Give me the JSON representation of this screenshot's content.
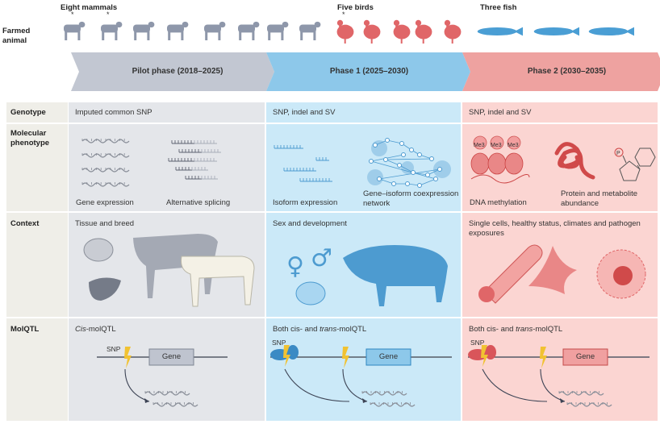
{
  "header": {
    "row_label": "Farmed animal",
    "groups": [
      {
        "label": "Eight mammals",
        "icons": [
          "cattle-icon",
          "pig-icon",
          "goat-icon",
          "sheep-icon",
          "horse-icon",
          "rabbit-icon",
          "camel-icon",
          "donkey-icon"
        ],
        "color": "#8e97aa"
      },
      {
        "label": "Five birds",
        "icons": [
          "chicken-icon",
          "duck-icon",
          "goose-icon",
          "turkey-icon",
          "pigeon-icon"
        ],
        "color": "#e06668"
      },
      {
        "label": "Three fish",
        "icons": [
          "carp-icon",
          "trout-icon",
          "salmon-icon"
        ],
        "color": "#4a9ed4"
      }
    ],
    "asterisk": "*"
  },
  "phases": [
    {
      "label": "Pilot phase (2018–2025)",
      "arrow_color": "#c2c7d2",
      "bg_color": "#e4e6ea"
    },
    {
      "label": "Phase 1 (2025–2030)",
      "arrow_color": "#8dc8ea",
      "bg_color": "#cbe9f8"
    },
    {
      "label": "Phase 2 (2030–2035)",
      "arrow_color": "#eea2a0",
      "bg_color": "#fbd5d2"
    }
  ],
  "rows": {
    "genotype": {
      "label": "Genotype",
      "cells": [
        "Imputed common SNP",
        "SNP, indel and SV",
        "SNP, indel and SV"
      ]
    },
    "molecular": {
      "label": "Molecular phenotype",
      "pilot": [
        "Gene expression",
        "Alternative splicing"
      ],
      "phase1": [
        "Isoform expression",
        "Gene–isoform coexpression network"
      ],
      "phase2": [
        "DNA methylation",
        "Protein and metabolite abundance"
      ],
      "methyl_tag": "Me3",
      "phospho_tag": "P"
    },
    "context": {
      "label": "Context",
      "cells": [
        "Tissue and breed",
        "Sex and development",
        "Single cells, healthy status, climates and pathogen exposures"
      ]
    },
    "molqtl": {
      "label": "MolQTL",
      "cells": [
        {
          "italic": "Cis",
          "rest": "-molQTL"
        },
        {
          "pre": "Both cis- and ",
          "italic": "trans",
          "rest": "-molQTL"
        },
        {
          "pre": "Both cis- and ",
          "italic": "trans",
          "rest": "-molQTL"
        }
      ],
      "snp": "SNP",
      "gene": "Gene"
    }
  }
}
